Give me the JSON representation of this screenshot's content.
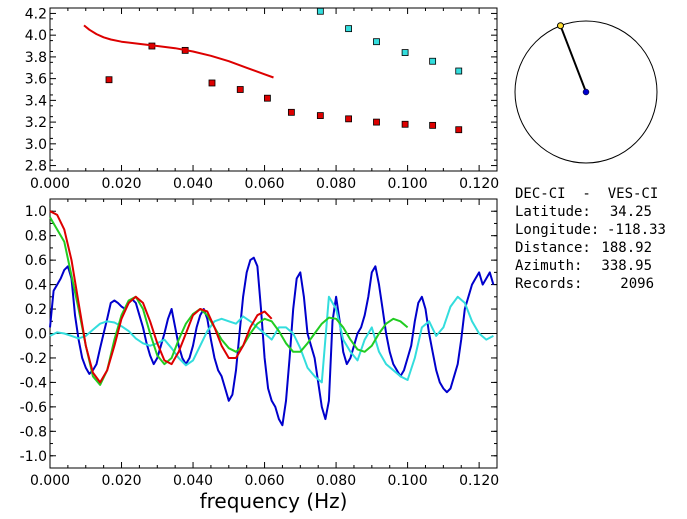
{
  "station": {
    "pair": "DEC-CI  -  VES-CI",
    "rows": [
      {
        "label": "Latitude:",
        "value": "34.25"
      },
      {
        "label": "Longitude:",
        "value": "-118.33"
      },
      {
        "label": "Distance:",
        "value": "188.92"
      },
      {
        "label": "Azimuth:",
        "value": "338.95"
      },
      {
        "label": "Records:",
        "value": "2096"
      }
    ]
  },
  "compass": {
    "azimuth_deg": 338.95
  },
  "colors": {
    "red": "#dd0000",
    "cyan": "#33dddd",
    "blue": "#0000cc",
    "green": "#22cc22",
    "black": "#000000"
  },
  "chart_data": [
    {
      "type": "scatter",
      "title": "",
      "xlabel": "",
      "ylabel": "",
      "xlim": [
        0.0,
        0.125
      ],
      "ylim": [
        2.75,
        4.25
      ],
      "x_ticks": [
        "0.000",
        "0.020",
        "0.040",
        "0.060",
        "0.080",
        "0.100",
        "0.120"
      ],
      "y_ticks": [
        "2.8",
        "3.0",
        "3.2",
        "3.4",
        "3.6",
        "3.8",
        "4.0",
        "4.2"
      ],
      "series": [
        {
          "kind": "points",
          "color": "red",
          "x": [
            0.0165,
            0.0285,
            0.0378,
            0.0453,
            0.0532,
            0.0608,
            0.0675,
            0.0756,
            0.0835,
            0.0913,
            0.0993,
            0.107,
            0.1143
          ],
          "y": [
            3.59,
            3.9,
            3.86,
            3.56,
            3.5,
            3.42,
            3.29,
            3.26,
            3.23,
            3.2,
            3.18,
            3.17,
            3.13
          ]
        },
        {
          "kind": "points",
          "color": "cyan",
          "x": [
            0.0756,
            0.0835,
            0.0913,
            0.0993,
            0.107,
            0.1143
          ],
          "y": [
            4.22,
            4.06,
            3.94,
            3.84,
            3.76,
            3.67
          ]
        },
        {
          "kind": "line",
          "color": "red",
          "x": [
            0.0095,
            0.011,
            0.013,
            0.015,
            0.017,
            0.02,
            0.025,
            0.03,
            0.035,
            0.04,
            0.045,
            0.05,
            0.055,
            0.06,
            0.0625
          ],
          "y": [
            4.09,
            4.05,
            4.01,
            3.98,
            3.96,
            3.94,
            3.92,
            3.9,
            3.88,
            3.85,
            3.81,
            3.76,
            3.7,
            3.64,
            3.61
          ]
        }
      ]
    },
    {
      "type": "line",
      "title": "",
      "xlabel": "frequency  (Hz)",
      "ylabel": "",
      "xlim": [
        0.0,
        0.125
      ],
      "ylim": [
        -1.1,
        1.1
      ],
      "x_ticks": [
        "0.000",
        "0.020",
        "0.040",
        "0.060",
        "0.080",
        "0.100",
        "0.120"
      ],
      "y_ticks": [
        "1.0",
        "0.8",
        "0.6",
        "0.4",
        "0.2",
        "0.0",
        "-0.2",
        "-0.4",
        "-0.6",
        "-0.8",
        "-1.0"
      ],
      "series": [
        {
          "color": "blue",
          "x": [
            0.0,
            0.001,
            0.002,
            0.003,
            0.004,
            0.005,
            0.006,
            0.007,
            0.008,
            0.009,
            0.01,
            0.011,
            0.012,
            0.013,
            0.014,
            0.015,
            0.016,
            0.017,
            0.018,
            0.019,
            0.02,
            0.021,
            0.022,
            0.023,
            0.024,
            0.025,
            0.026,
            0.027,
            0.028,
            0.029,
            0.03,
            0.031,
            0.032,
            0.033,
            0.034,
            0.035,
            0.036,
            0.037,
            0.038,
            0.039,
            0.04,
            0.041,
            0.042,
            0.043,
            0.044,
            0.045,
            0.046,
            0.047,
            0.048,
            0.049,
            0.05,
            0.051,
            0.052,
            0.053,
            0.054,
            0.055,
            0.056,
            0.057,
            0.058,
            0.059,
            0.06,
            0.061,
            0.062,
            0.063,
            0.064,
            0.065,
            0.066,
            0.067,
            0.068,
            0.069,
            0.07,
            0.071,
            0.072,
            0.073,
            0.074,
            0.075,
            0.076,
            0.077,
            0.078,
            0.079,
            0.08,
            0.081,
            0.082,
            0.083,
            0.084,
            0.085,
            0.086,
            0.087,
            0.088,
            0.089,
            0.09,
            0.091,
            0.092,
            0.093,
            0.094,
            0.095,
            0.096,
            0.097,
            0.098,
            0.099,
            0.1,
            0.101,
            0.102,
            0.103,
            0.104,
            0.105,
            0.106,
            0.107,
            0.108,
            0.109,
            0.11,
            0.111,
            0.112,
            0.113,
            0.114,
            0.115,
            0.116,
            0.117,
            0.118,
            0.119,
            0.12,
            0.121,
            0.122,
            0.123,
            0.124
          ],
          "y": [
            0.05,
            0.35,
            0.4,
            0.45,
            0.52,
            0.55,
            0.45,
            0.15,
            -0.05,
            -0.2,
            -0.28,
            -0.33,
            -0.3,
            -0.25,
            -0.12,
            0.0,
            0.12,
            0.25,
            0.27,
            0.25,
            0.22,
            0.2,
            0.25,
            0.28,
            0.25,
            0.15,
            0.05,
            -0.08,
            -0.18,
            -0.25,
            -0.2,
            -0.1,
            0.0,
            0.12,
            0.2,
            0.05,
            -0.1,
            -0.2,
            -0.25,
            -0.2,
            -0.1,
            0.05,
            0.15,
            0.2,
            0.12,
            -0.05,
            -0.2,
            -0.3,
            -0.35,
            -0.45,
            -0.55,
            -0.5,
            -0.3,
            0.0,
            0.3,
            0.5,
            0.6,
            0.62,
            0.55,
            0.2,
            -0.2,
            -0.45,
            -0.55,
            -0.6,
            -0.7,
            -0.75,
            -0.55,
            -0.2,
            0.2,
            0.45,
            0.5,
            0.3,
            0.0,
            -0.1,
            -0.2,
            -0.4,
            -0.6,
            -0.7,
            -0.55,
            0.1,
            0.3,
            0.1,
            -0.15,
            -0.25,
            -0.2,
            -0.1,
            0.0,
            0.05,
            0.15,
            0.3,
            0.5,
            0.55,
            0.4,
            0.2,
            0.0,
            -0.15,
            -0.25,
            -0.3,
            -0.35,
            -0.3,
            -0.2,
            -0.1,
            0.1,
            0.25,
            0.3,
            0.2,
            0.0,
            -0.15,
            -0.3,
            -0.4,
            -0.45,
            -0.48,
            -0.45,
            -0.35,
            -0.25,
            -0.05,
            0.2,
            0.3,
            0.4,
            0.45,
            0.5,
            0.4,
            0.45,
            0.5,
            0.4
          ],
          "note": ""
        },
        {
          "color": "cyan",
          "x": [
            0.0,
            0.002,
            0.004,
            0.006,
            0.008,
            0.01,
            0.012,
            0.014,
            0.016,
            0.018,
            0.02,
            0.022,
            0.024,
            0.026,
            0.028,
            0.03,
            0.032,
            0.034,
            0.036,
            0.038,
            0.04,
            0.042,
            0.044,
            0.046,
            0.048,
            0.05,
            0.052,
            0.054,
            0.056,
            0.058,
            0.06,
            0.062,
            0.064,
            0.066,
            0.068,
            0.07,
            0.072,
            0.074,
            0.076,
            0.078,
            0.08,
            0.082,
            0.084,
            0.086,
            0.088,
            0.09,
            0.092,
            0.094,
            0.096,
            0.098,
            0.1,
            0.102,
            0.104,
            0.106,
            0.108,
            0.11,
            0.112,
            0.114,
            0.116,
            0.118,
            0.12,
            0.122,
            0.124
          ],
          "y": [
            -0.02,
            0.01,
            0.0,
            -0.02,
            -0.04,
            -0.02,
            0.03,
            0.08,
            0.1,
            0.09,
            0.06,
            0.02,
            -0.04,
            -0.08,
            -0.1,
            -0.08,
            -0.05,
            -0.12,
            -0.2,
            -0.26,
            -0.22,
            -0.1,
            0.02,
            0.1,
            0.12,
            0.1,
            0.08,
            0.14,
            0.1,
            0.05,
            0.0,
            -0.05,
            0.05,
            0.05,
            0.0,
            -0.12,
            -0.28,
            -0.35,
            -0.4,
            0.3,
            0.2,
            -0.05,
            -0.15,
            -0.22,
            -0.05,
            0.05,
            -0.15,
            -0.25,
            -0.3,
            -0.35,
            -0.38,
            -0.2,
            0.05,
            0.1,
            -0.02,
            0.05,
            0.22,
            0.3,
            0.25,
            0.1,
            0.0,
            -0.05,
            -0.02
          ]
        },
        {
          "color": "green",
          "x": [
            0.0,
            0.004,
            0.008,
            0.01,
            0.012,
            0.014,
            0.016,
            0.018,
            0.02,
            0.022,
            0.024,
            0.026,
            0.028,
            0.03,
            0.032,
            0.034,
            0.036,
            0.038,
            0.04,
            0.042,
            0.044,
            0.046,
            0.048,
            0.05,
            0.052,
            0.054,
            0.056,
            0.058,
            0.06,
            0.062,
            0.064,
            0.066,
            0.068,
            0.07,
            0.072,
            0.074,
            0.076,
            0.078,
            0.08,
            0.082,
            0.084,
            0.086,
            0.088,
            0.09,
            0.092,
            0.094,
            0.096,
            0.098,
            0.1
          ],
          "y": [
            0.95,
            0.75,
            0.2,
            -0.1,
            -0.35,
            -0.42,
            -0.3,
            -0.05,
            0.15,
            0.27,
            0.3,
            0.2,
            0.0,
            -0.18,
            -0.25,
            -0.2,
            -0.05,
            0.08,
            0.16,
            0.2,
            0.15,
            0.05,
            -0.05,
            -0.12,
            -0.15,
            -0.1,
            0.0,
            0.08,
            0.12,
            0.1,
            0.02,
            -0.08,
            -0.15,
            -0.15,
            -0.08,
            0.0,
            0.08,
            0.13,
            0.12,
            0.05,
            -0.05,
            -0.13,
            -0.15,
            -0.1,
            0.0,
            0.08,
            0.12,
            0.1,
            0.05
          ]
        },
        {
          "color": "red",
          "x": [
            0.0,
            0.002,
            0.004,
            0.006,
            0.008,
            0.01,
            0.012,
            0.014,
            0.016,
            0.018,
            0.02,
            0.022,
            0.024,
            0.026,
            0.028,
            0.03,
            0.032,
            0.034,
            0.036,
            0.038,
            0.04,
            0.042,
            0.044,
            0.046,
            0.048,
            0.05,
            0.052,
            0.054,
            0.056,
            0.058,
            0.06,
            0.062
          ],
          "y": [
            1.0,
            0.97,
            0.85,
            0.6,
            0.25,
            -0.1,
            -0.32,
            -0.4,
            -0.3,
            -0.1,
            0.12,
            0.25,
            0.3,
            0.25,
            0.1,
            -0.08,
            -0.22,
            -0.25,
            -0.15,
            0.0,
            0.15,
            0.2,
            0.18,
            0.05,
            -0.1,
            -0.2,
            -0.2,
            -0.1,
            0.05,
            0.15,
            0.18,
            0.12
          ]
        }
      ]
    }
  ]
}
